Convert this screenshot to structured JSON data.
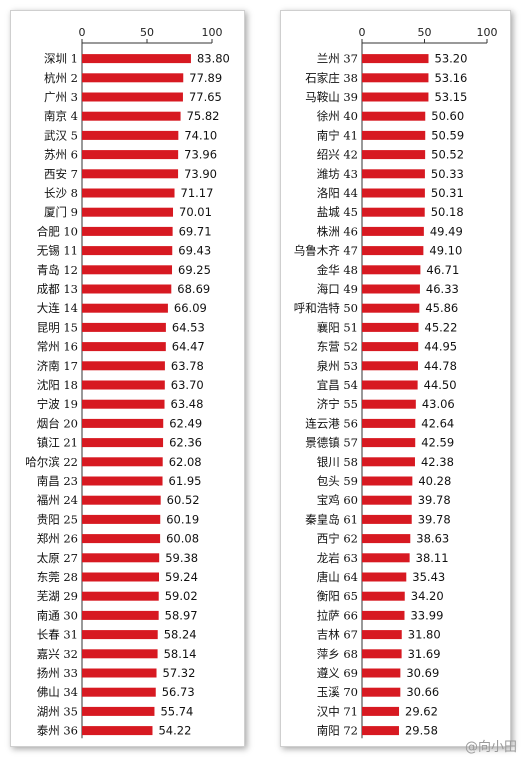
{
  "chart_data": [
    {
      "type": "bar",
      "orientation": "horizontal",
      "xlim": [
        0,
        100
      ],
      "xticks": [
        0,
        50,
        100
      ],
      "grid": false,
      "colors": {
        "bar": "#d71921"
      },
      "categories": [
        "深圳 1",
        "杭州 2",
        "广州 3",
        "南京 4",
        "武汉 5",
        "苏州 6",
        "西安 7",
        "长沙 8",
        "厦门 9",
        "合肥 10",
        "无锡 11",
        "青岛 12",
        "成都 13",
        "大连 14",
        "昆明 15",
        "常州 16",
        "济南 17",
        "沈阳 18",
        "宁波 19",
        "烟台 20",
        "镇江 21",
        "哈尔滨 22",
        "南昌 23",
        "福州 24",
        "贵阳 25",
        "郑州 26",
        "太原 27",
        "东莞 28",
        "芜湖 29",
        "南通 30",
        "长春 31",
        "嘉兴 32",
        "扬州 33",
        "佛山 34",
        "湖州 35",
        "泰州 36"
      ],
      "values": [
        83.8,
        77.89,
        77.65,
        75.82,
        74.1,
        73.96,
        73.9,
        71.17,
        70.01,
        69.71,
        69.43,
        69.25,
        68.69,
        66.09,
        64.53,
        64.47,
        63.78,
        63.7,
        63.48,
        62.49,
        62.36,
        62.08,
        61.95,
        60.52,
        60.19,
        60.08,
        59.38,
        59.24,
        59.02,
        58.97,
        58.24,
        58.14,
        57.32,
        56.73,
        55.74,
        54.22
      ]
    },
    {
      "type": "bar",
      "orientation": "horizontal",
      "xlim": [
        0,
        100
      ],
      "xticks": [
        0,
        50,
        100
      ],
      "grid": false,
      "colors": {
        "bar": "#d71921"
      },
      "categories": [
        "兰州 37",
        "石家庄 38",
        "马鞍山 39",
        "徐州 40",
        "南宁 41",
        "绍兴 42",
        "潍坊 43",
        "洛阳 44",
        "盐城 45",
        "株洲 46",
        "乌鲁木齐 47",
        "金华 48",
        "海口 49",
        "呼和浩特 50",
        "襄阳 51",
        "东营 52",
        "泉州 53",
        "宜昌 54",
        "济宁 55",
        "连云港 56",
        "景德镇 57",
        "银川 58",
        "包头 59",
        "宝鸡 60",
        "秦皇岛 61",
        "西宁 62",
        "龙岩 63",
        "唐山 64",
        "衡阳 65",
        "拉萨 66",
        "吉林 67",
        "萍乡 68",
        "遵义 69",
        "玉溪 70",
        "汉中 71",
        "南阳 72"
      ],
      "values": [
        53.2,
        53.16,
        53.15,
        50.6,
        50.59,
        50.52,
        50.33,
        50.31,
        50.18,
        49.49,
        49.1,
        46.71,
        46.33,
        45.86,
        45.22,
        44.95,
        44.78,
        44.5,
        43.06,
        42.64,
        42.59,
        42.38,
        40.28,
        39.78,
        39.78,
        38.63,
        38.11,
        35.43,
        34.2,
        33.99,
        31.8,
        31.69,
        30.69,
        30.66,
        29.62,
        29.58
      ]
    }
  ],
  "watermark": "@向小田"
}
